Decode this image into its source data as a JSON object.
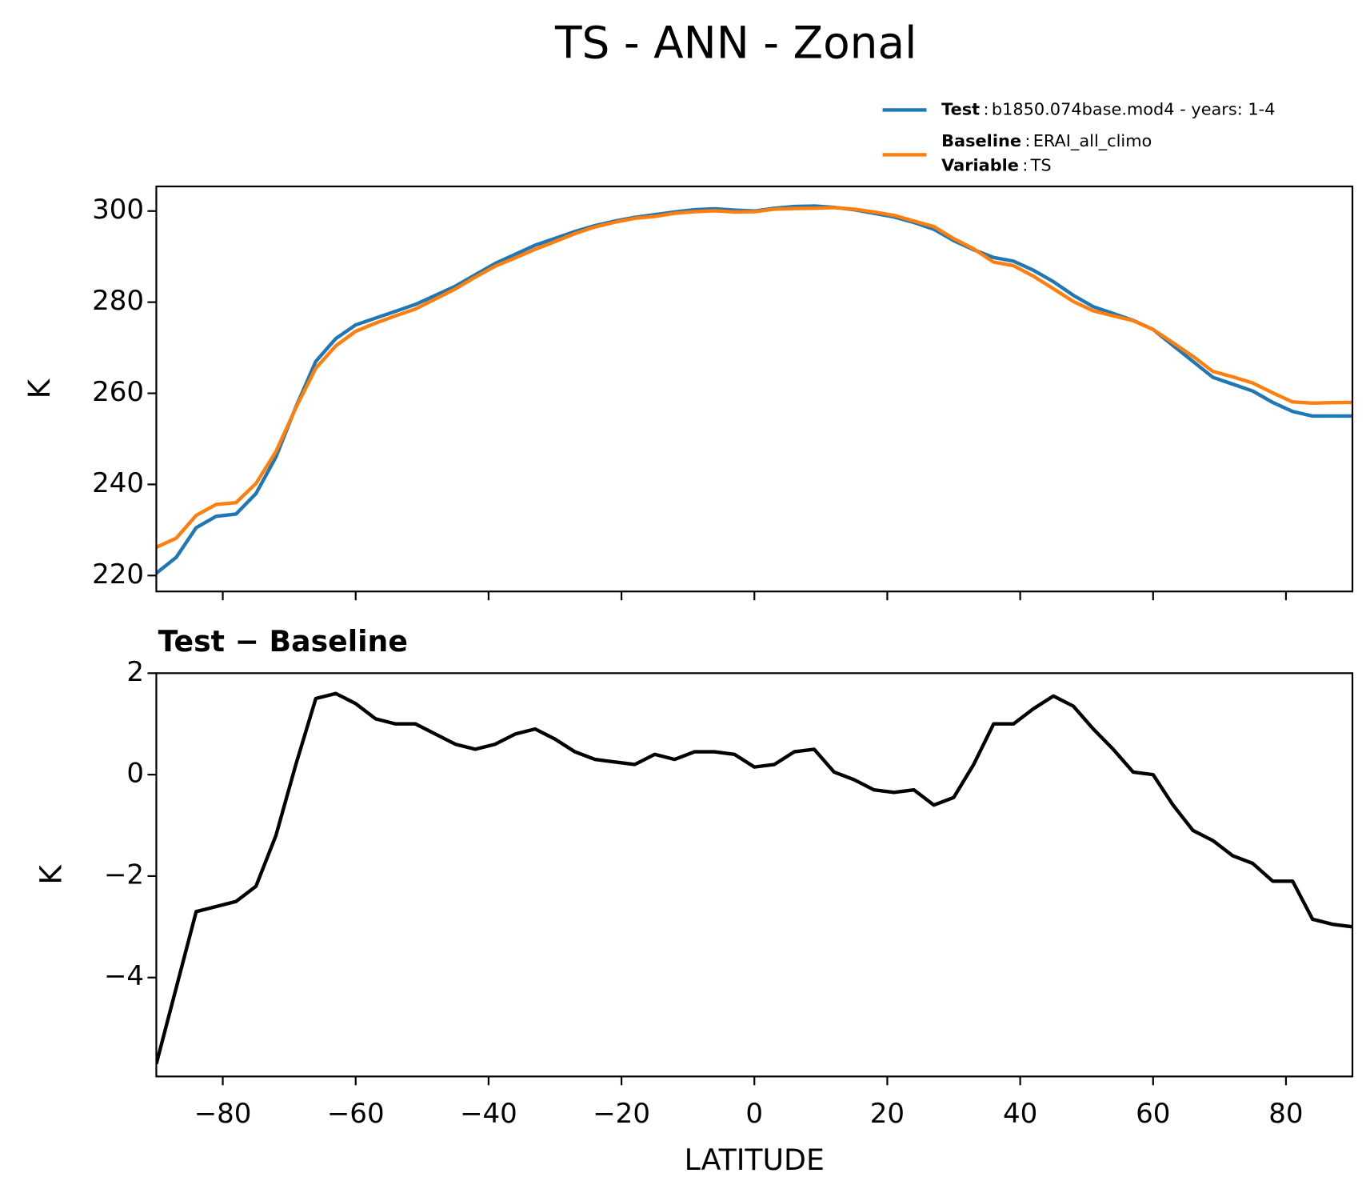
{
  "chart_data": [
    {
      "type": "line",
      "title": "TS - ANN - Zonal",
      "ylabel": "K",
      "x": [
        -90,
        -87,
        -84,
        -81,
        -78,
        -75,
        -72,
        -69,
        -66,
        -63,
        -60,
        -57,
        -54,
        -51,
        -48,
        -45,
        -42,
        -39,
        -36,
        -33,
        -30,
        -27,
        -24,
        -21,
        -18,
        -15,
        -12,
        -9,
        -6,
        -3,
        0,
        3,
        6,
        9,
        12,
        15,
        18,
        21,
        24,
        27,
        30,
        33,
        36,
        39,
        42,
        45,
        48,
        51,
        54,
        57,
        60,
        63,
        66,
        69,
        72,
        75,
        78,
        81,
        84,
        87,
        90
      ],
      "series": [
        {
          "name": "Test",
          "case": "b1850.074base.mod4 - years: 1-4",
          "color": "#1f77b4",
          "values": [
            220.5,
            224,
            230.5,
            233,
            233.5,
            238,
            246,
            257,
            267,
            272,
            275,
            276.5,
            278,
            279.5,
            281.5,
            283.5,
            286,
            288.5,
            290.5,
            292.5,
            294,
            295.5,
            296.8,
            297.8,
            298.6,
            299.2,
            299.8,
            300.3,
            300.5,
            300.2,
            300,
            300.6,
            301,
            301.1,
            300.8,
            300.3,
            299.5,
            298.7,
            297.5,
            296,
            293.5,
            291.5,
            289.8,
            289,
            287,
            284.5,
            281.5,
            279,
            277.5,
            276,
            274,
            270.5,
            267,
            263.5,
            262,
            260.5,
            258,
            256,
            255,
            255,
            255
          ]
        },
        {
          "name": "Baseline",
          "case": "ERAI_all_climo",
          "color": "#ff7f0e",
          "values": [
            226.2,
            228.2,
            233.2,
            235.6,
            236,
            240.2,
            247.2,
            256.8,
            265.5,
            270.4,
            273.6,
            275.4,
            277,
            278.5,
            280.7,
            282.9,
            285.5,
            287.9,
            289.7,
            291.6,
            293.3,
            295.05,
            296.5,
            297.55,
            298.4,
            298.8,
            299.5,
            299.85,
            300.05,
            299.8,
            299.85,
            300.4,
            300.55,
            300.6,
            300.75,
            300.4,
            299.8,
            299.05,
            297.8,
            296.6,
            293.95,
            291.7,
            288.8,
            288,
            285.7,
            282.95,
            280.15,
            278.1,
            277,
            275.95,
            274,
            271.1,
            268.1,
            264.8,
            263.6,
            262.25,
            260.1,
            258.1,
            257.85,
            257.95,
            258
          ]
        }
      ],
      "legend_separator": ":",
      "variable_label": "Variable",
      "variable": "TS",
      "xlim": [
        -90,
        90
      ],
      "xticks": [
        -80,
        -60,
        -40,
        -20,
        0,
        20,
        40,
        60,
        80
      ],
      "ylim": [
        216.5,
        305.4
      ],
      "yticks": [
        220,
        240,
        260,
        280,
        300
      ]
    },
    {
      "type": "line",
      "title": "Test − Baseline",
      "ylabel": "K",
      "xlabel": "LATITUDE",
      "x": [
        -90,
        -87,
        -84,
        -81,
        -78,
        -75,
        -72,
        -69,
        -66,
        -63,
        -60,
        -57,
        -54,
        -51,
        -48,
        -45,
        -42,
        -39,
        -36,
        -33,
        -30,
        -27,
        -24,
        -21,
        -18,
        -15,
        -12,
        -9,
        -6,
        -3,
        0,
        3,
        6,
        9,
        12,
        15,
        18,
        21,
        24,
        27,
        30,
        33,
        36,
        39,
        42,
        45,
        48,
        51,
        54,
        57,
        60,
        63,
        66,
        69,
        72,
        75,
        78,
        81,
        84,
        87,
        90
      ],
      "series": [
        {
          "color": "#000000",
          "values": [
            -5.7,
            -4.2,
            -2.7,
            -2.6,
            -2.5,
            -2.2,
            -1.2,
            0.2,
            1.5,
            1.6,
            1.4,
            1.1,
            1.0,
            1.0,
            0.8,
            0.6,
            0.5,
            0.6,
            0.8,
            0.9,
            0.7,
            0.45,
            0.3,
            0.25,
            0.2,
            0.4,
            0.3,
            0.45,
            0.45,
            0.4,
            0.15,
            0.2,
            0.45,
            0.5,
            0.05,
            -0.1,
            -0.3,
            -0.35,
            -0.3,
            -0.6,
            -0.45,
            0.2,
            1.0,
            1.0,
            1.3,
            1.55,
            1.35,
            0.9,
            0.5,
            0.05,
            0.0,
            -0.6,
            -1.1,
            -1.3,
            -1.6,
            -1.75,
            -2.1,
            -2.1,
            -2.85,
            -2.95,
            -3.0
          ]
        }
      ],
      "xlim": [
        -90,
        90
      ],
      "xticks": [
        {
          "value": -80,
          "label": "−80"
        },
        {
          "value": -60,
          "label": "−60"
        },
        {
          "value": -40,
          "label": "−40"
        },
        {
          "value": -20,
          "label": "−20"
        },
        0,
        20,
        40,
        60,
        80
      ],
      "ylim": [
        -5.95,
        2.0
      ],
      "yticks": [
        {
          "value": -4,
          "label": "−4"
        },
        {
          "value": -2,
          "label": "−2"
        },
        0,
        2
      ]
    }
  ]
}
